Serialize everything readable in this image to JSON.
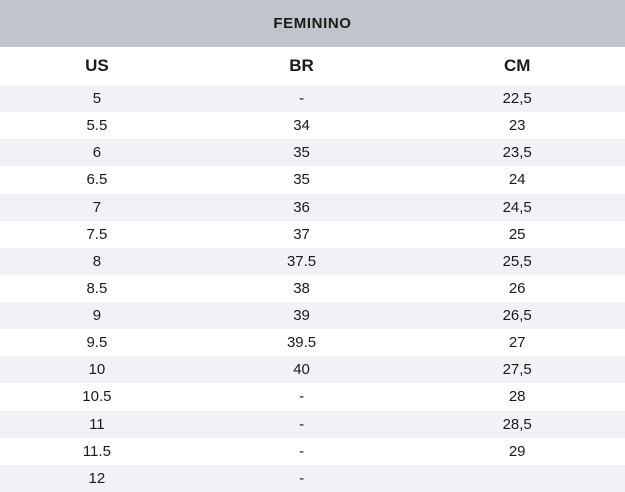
{
  "chart_data": {
    "type": "table",
    "title": "FEMININO",
    "columns": [
      "US",
      "BR",
      "CM"
    ],
    "rows": [
      [
        "5",
        "-",
        "22,5"
      ],
      [
        "5.5",
        "34",
        "23"
      ],
      [
        "6",
        "35",
        "23,5"
      ],
      [
        "6.5",
        "35",
        "24"
      ],
      [
        "7",
        "36",
        "24,5"
      ],
      [
        "7.5",
        "37",
        "25"
      ],
      [
        "8",
        "37.5",
        "25,5"
      ],
      [
        "8.5",
        "38",
        "26"
      ],
      [
        "9",
        "39",
        "26,5"
      ],
      [
        "9.5",
        "39.5",
        "27"
      ],
      [
        "10",
        "40",
        "27,5"
      ],
      [
        "10.5",
        "-",
        "28"
      ],
      [
        "11",
        "-",
        "28,5"
      ],
      [
        "11.5",
        "-",
        "29"
      ],
      [
        "12",
        "-",
        ""
      ]
    ],
    "layout_hints": {
      "first_data_row_striped": true,
      "grid": "none",
      "alignment": "center"
    }
  },
  "colors": {
    "title_band_bg": "#bfc5cb",
    "row_stripe_bg": "#f0f2f6",
    "row_alt_bg": "#ffffff",
    "text": "#1a1a1a"
  }
}
